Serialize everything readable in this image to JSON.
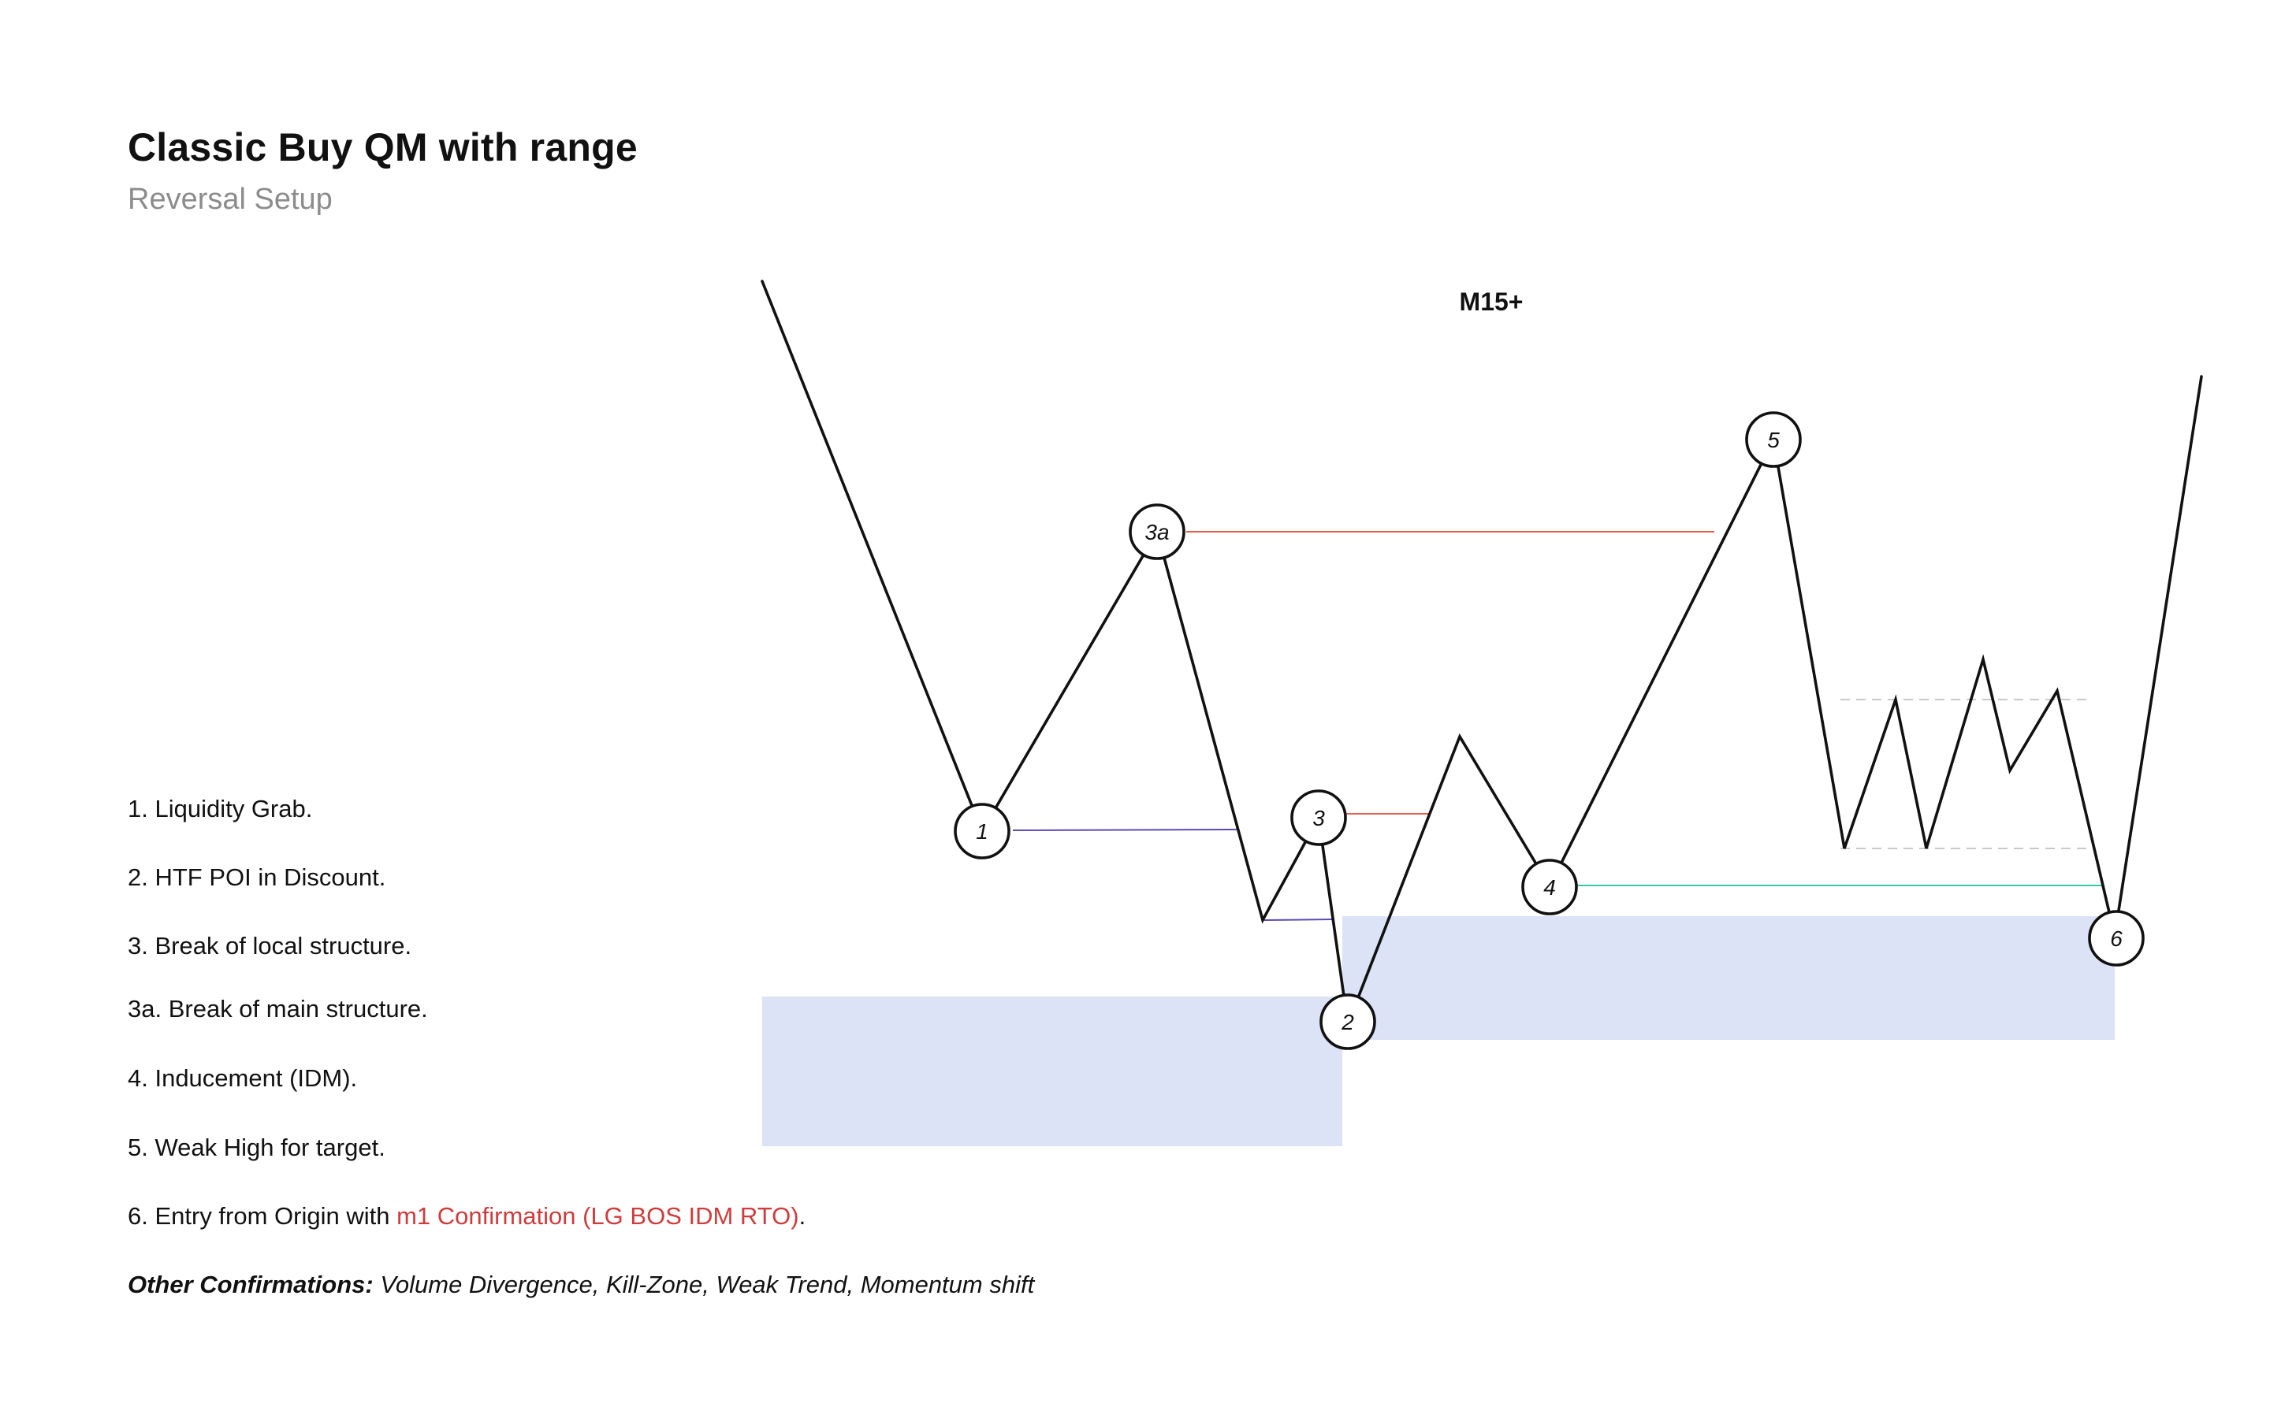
{
  "header": {
    "title": "Classic Buy QM with range",
    "subtitle": "Reversal Setup"
  },
  "diagram": {
    "timeframe": "M15+",
    "nodes": [
      "1",
      "2",
      "3",
      "3a",
      "4",
      "5",
      "6"
    ],
    "colors": {
      "price_path": "#111111",
      "zone_fill": "#dde3f7",
      "line_1_to_2": "#5b4ab5",
      "line_3": "#e0604a",
      "line_3a_to_5": "#e0604a",
      "line_4_to_6": "#3cc6a6",
      "range_dashed": "#c9c9c9"
    }
  },
  "legend": {
    "item1": "1. Liquidity Grab.",
    "item2": "2. HTF POI in Discount.",
    "item3": "3. Break of local structure.",
    "item3a": "3a. Break of main structure.",
    "item4": "4. Inducement (IDM).",
    "item5": "5. Weak High for target.",
    "item6_prefix": "6. Entry from Origin with ",
    "item6_highlight": "m1 Confirmation (LG BOS IDM RTO)",
    "item6_suffix": ".",
    "other_label": "Other Confirmations:",
    "other_text": " Volume Divergence, Kill-Zone, Weak Trend, Momentum shift"
  }
}
